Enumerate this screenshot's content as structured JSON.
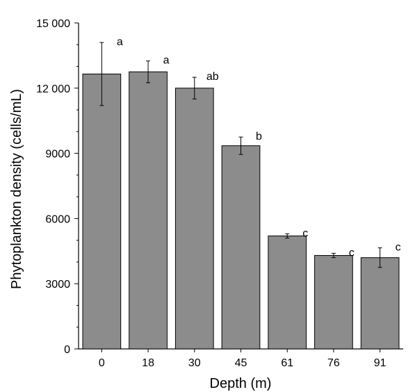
{
  "chart_data": {
    "type": "bar",
    "title": "",
    "xlabel": "Depth (m)",
    "ylabel": "Phytoplankton density (cells/mL)",
    "ylim": [
      0,
      15000
    ],
    "yticks": [
      0,
      3000,
      6000,
      9000,
      12000,
      15000
    ],
    "ytick_labels": [
      "0",
      "3000",
      "6000",
      "9000",
      "12 000",
      "15 000"
    ],
    "categories": [
      "0",
      "18",
      "30",
      "45",
      "61",
      "76",
      "91"
    ],
    "values": [
      12650,
      12750,
      12000,
      9350,
      5200,
      4300,
      4200
    ],
    "errors": [
      1450,
      500,
      500,
      400,
      100,
      100,
      450
    ],
    "significance_labels": [
      "a",
      "a",
      "ab",
      "b",
      "c",
      "c",
      "c"
    ],
    "bar_color": "#8c8c8c",
    "grid": false,
    "legend": "none"
  }
}
